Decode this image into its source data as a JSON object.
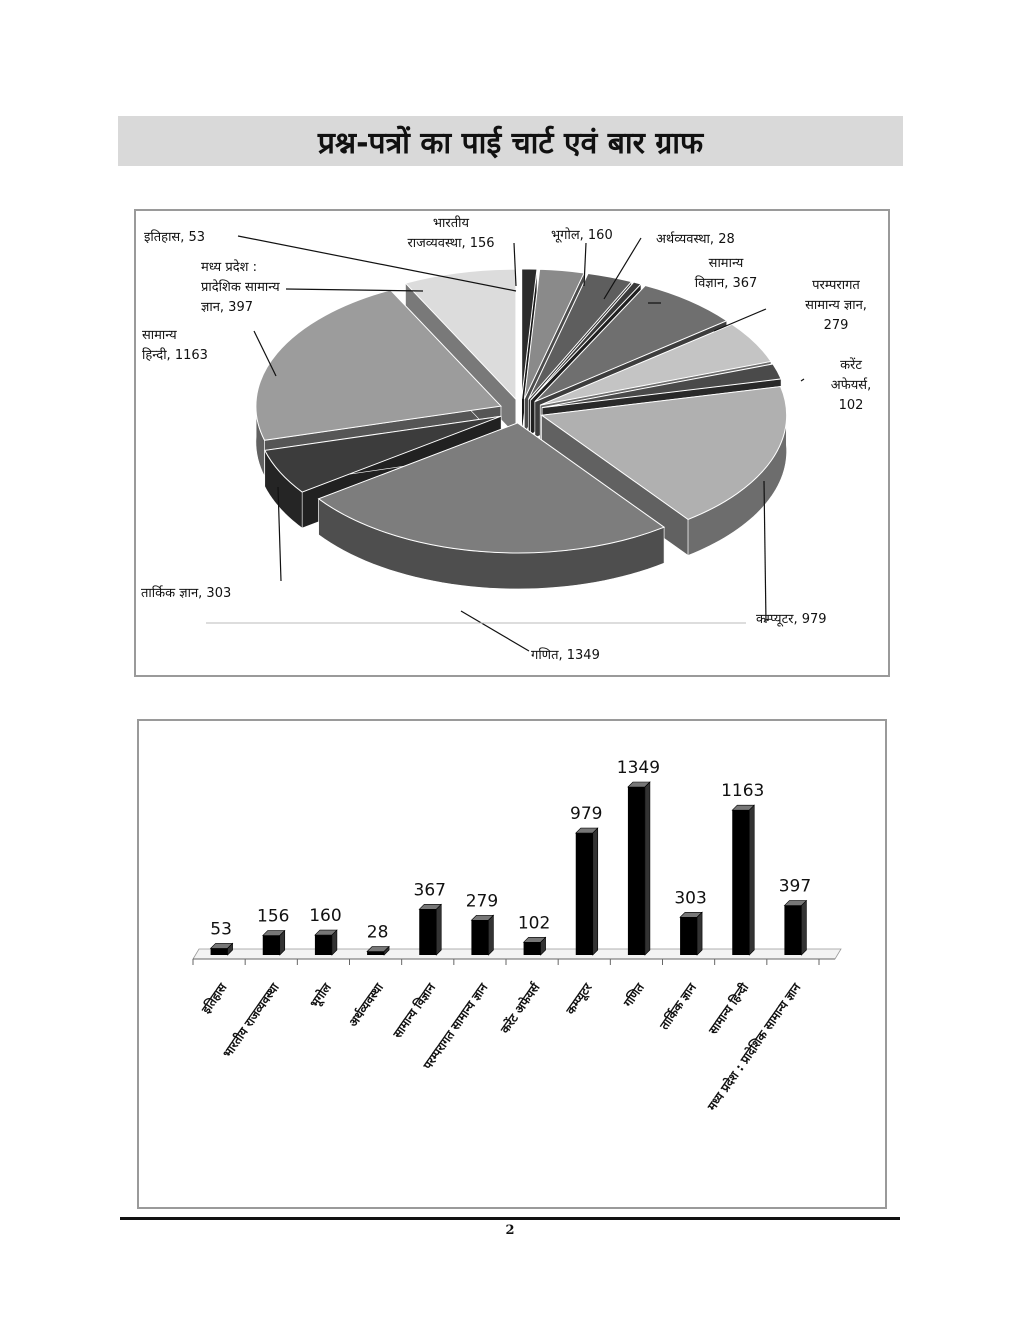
{
  "page": {
    "title": "प्रश्न-पत्रों का पाई चार्ट एवं बार ग्राफ",
    "page_number": "2"
  },
  "chart_data": [
    {
      "type": "pie",
      "title": "",
      "style": "3d-exploded",
      "slices": [
        {
          "label": "इतिहास",
          "value": 53,
          "text": "इतिहास, 53",
          "color": "#2b2b2b"
        },
        {
          "label": "भारतीय राजव्यवस्था",
          "value": 156,
          "text_lines": [
            "भारतीय",
            "राजव्यवस्था, 156"
          ],
          "color": "#8a8a8a"
        },
        {
          "label": "भूगोल",
          "value": 160,
          "text": "भूगोल, 160",
          "color": "#5e5e5e"
        },
        {
          "label": "अर्थव्यवस्था",
          "value": 28,
          "text": "अर्थव्यवस्था, 28",
          "color": "#3a3a3a"
        },
        {
          "label": "सामान्य विज्ञान",
          "value": 367,
          "text_lines": [
            "सामान्य",
            "विज्ञान, 367"
          ],
          "color": "#6f6f6f"
        },
        {
          "label": "परम्परागत सामान्य ज्ञान",
          "value": 279,
          "text_lines": [
            "परम्परागत",
            "सामान्य ज्ञान,",
            "279"
          ],
          "color": "#c4c4c4"
        },
        {
          "label": "करेंट अफेयर्स",
          "value": 102,
          "text_lines": [
            "करेंट",
            "अफेयर्स,",
            "102"
          ],
          "color": "#4a4a4a"
        },
        {
          "label": "कम्प्यूटर",
          "value": 979,
          "text": "कम्प्यूटर, 979",
          "color": "#b0b0b0"
        },
        {
          "label": "गणित",
          "value": 1349,
          "text": "गणित, 1349",
          "color": "#7d7d7d"
        },
        {
          "label": "तार्किक ज्ञान",
          "value": 303,
          "text": "तार्किक ज्ञान, 303",
          "color": "#3c3c3c"
        },
        {
          "label": "सामान्य हिन्दी",
          "value": 1163,
          "text_lines": [
            "सामान्य",
            "हिन्दी, 1163"
          ],
          "color": "#9c9c9c"
        },
        {
          "label": "मध्य प्रदेश : प्रादेशिक सामान्य ज्ञान",
          "value": 397,
          "text_lines": [
            "मध्य प्रदेश :",
            "प्रादेशिक सामान्य",
            "ज्ञान, 397"
          ],
          "color": "#dcdcdc"
        }
      ]
    },
    {
      "type": "bar",
      "title": "",
      "style": "3d-columns",
      "xlabel": "",
      "ylabel": "",
      "ylim": [
        0,
        1349
      ],
      "grid": false,
      "legend": "none",
      "bar_color": "#000000",
      "categories": [
        "इतिहास",
        "भारतीय राजव्यवस्था",
        "भूगोल",
        "अर्थव्यवस्था",
        "सामान्य विज्ञान",
        "परम्परागत सामान्य ज्ञान",
        "करेंट अफेयर्स",
        "कम्प्यूटर",
        "गणित",
        "तार्किक ज्ञान",
        "सामान्य हिन्दी",
        "मध्य प्रदेश : प्रादेशिक सामान्य ज्ञान"
      ],
      "values": [
        53,
        156,
        160,
        28,
        367,
        279,
        102,
        979,
        1349,
        303,
        1163,
        397
      ],
      "value_labels": [
        "53",
        "156",
        "160",
        "28",
        "367",
        "279",
        "102",
        "979",
        "1349",
        "303",
        "1163",
        "397"
      ]
    }
  ]
}
